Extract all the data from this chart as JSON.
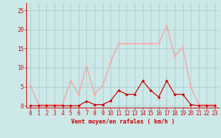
{
  "x": [
    0,
    1,
    2,
    3,
    4,
    5,
    6,
    7,
    8,
    9,
    10,
    11,
    12,
    13,
    14,
    15,
    16,
    17,
    18,
    19,
    20,
    21,
    22,
    23
  ],
  "rafales": [
    5.3,
    0.3,
    0.3,
    0.3,
    0.3,
    6.5,
    3.0,
    10.3,
    3.0,
    5.3,
    11.5,
    16.3,
    16.3,
    16.3,
    16.3,
    16.3,
    16.3,
    21.0,
    13.0,
    15.3,
    5.0,
    0.3,
    0.3,
    0.3
  ],
  "moyen": [
    0,
    0,
    0,
    0,
    0,
    0,
    0,
    1.2,
    0.3,
    0.3,
    1.3,
    4.0,
    3.0,
    3.0,
    6.5,
    4.0,
    2.3,
    6.5,
    3.0,
    3.0,
    0.3,
    0,
    0,
    0
  ],
  "bg_color": "#cce8e8",
  "grid_color": "#aacccc",
  "line_color_moyen": "#cc0000",
  "line_color_rafales": "#ff9999",
  "marker_color_moyen": "#cc0000",
  "marker_color_rafales": "#ffaaaa",
  "xlabel": "Vent moyen/en rafales ( km/h )",
  "ylabel_ticks": [
    0,
    5,
    10,
    15,
    20,
    25
  ],
  "ylim": [
    -0.5,
    27
  ],
  "xlim": [
    -0.5,
    23.5
  ],
  "xlabel_fontsize": 6.0,
  "tick_fontsize": 5.5,
  "xlabel_color": "#cc0000",
  "axis_color": "#cc0000"
}
